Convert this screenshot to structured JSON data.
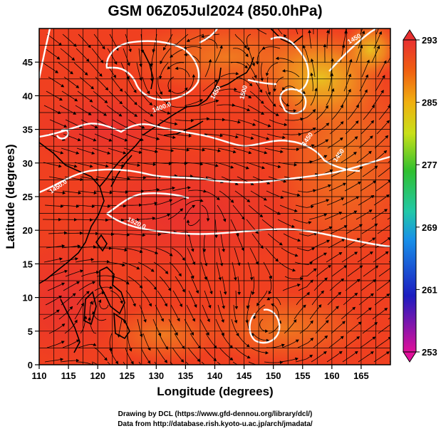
{
  "title": "GSM 06Z05Jul2024 (850.0hPa)",
  "x_axis": {
    "label": "Longitude (degrees)",
    "ticks": [
      "110",
      "115",
      "120",
      "125",
      "130",
      "135",
      "140",
      "145",
      "150",
      "155",
      "160",
      "165"
    ],
    "range": [
      110,
      170
    ]
  },
  "y_axis": {
    "label": "Latitude  (degrees)",
    "ticks": [
      "0",
      "5",
      "10",
      "15",
      "20",
      "25",
      "30",
      "35",
      "40",
      "45"
    ],
    "range": [
      0,
      50
    ]
  },
  "colorbar": {
    "ticks": [
      "293",
      "285",
      "277",
      "269",
      "261",
      "253"
    ],
    "range": [
      253,
      293
    ],
    "colors": [
      "#e0109a",
      "#1c1cc0",
      "#1890e8",
      "#22c8a8",
      "#30c030",
      "#c8e018",
      "#f0b010",
      "#f06010",
      "#e83030"
    ]
  },
  "contour_labels": [
    "1400.0",
    "1450",
    "1450",
    "1450",
    "1450.0",
    "1450",
    "1500",
    "1520.0"
  ],
  "credits": {
    "line1": "Drawing by DCL (https://www.gfd-dennou.org/library/dcl/)",
    "line2": "Data from http://database.rish.kyoto-u.ac.jp/arch/jmadata/"
  },
  "colors": {
    "field_base": "#f04020",
    "field_warm": "#e83030",
    "field_cool": "#f08020",
    "field_cooler": "#e8d020",
    "coast": "#000000",
    "contour": "#ffffff"
  }
}
